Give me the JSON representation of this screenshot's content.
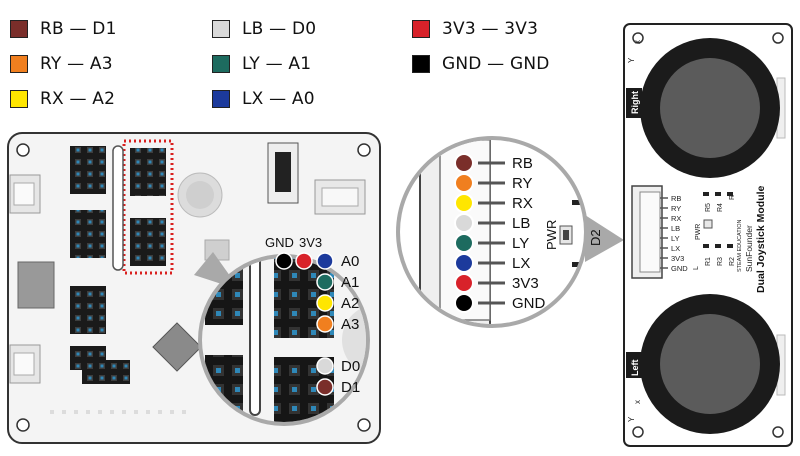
{
  "legend": [
    {
      "label": "RB — D1",
      "color": "#7a2e2a"
    },
    {
      "label": "RY — A3",
      "color": "#f07f1f"
    },
    {
      "label": "RX — A2",
      "color": "#ffe600"
    },
    {
      "label": "LB — D0",
      "color": "#d9d9d9"
    },
    {
      "label": "LY — A1",
      "color": "#1d6b5f"
    },
    {
      "label": "LX — A0",
      "color": "#1c3a9c"
    },
    {
      "label": "3V3 — 3V3",
      "color": "#d8222a"
    },
    {
      "label": "GND — GND",
      "color": "#000000"
    }
  ],
  "board_zoom": {
    "gnd_label": "GND",
    "v33_label": "3V3",
    "analog_pins": [
      "A0",
      "A1",
      "A2",
      "A3"
    ],
    "digital_pins": [
      "D0",
      "D1"
    ]
  },
  "connector_zoom": {
    "pins": [
      "RB",
      "RY",
      "RX",
      "LB",
      "LY",
      "LX",
      "3V3",
      "GND"
    ],
    "pwr_label": "PWR",
    "side_label": "D2"
  },
  "module": {
    "name": "Dual Joystick Module",
    "brand": "SunFounder",
    "sub_brand": "STEAM EDUCATION",
    "right_tab": "Right",
    "left_tab": "Left",
    "header_pins": [
      "RB",
      "RY",
      "RX",
      "LB",
      "LY",
      "LX",
      "3V3",
      "GND"
    ],
    "resistors": [
      "R5",
      "R4",
      "R",
      "R1",
      "R3",
      "R2",
      "L"
    ],
    "pwr_label": "PWR",
    "axis_x": "x",
    "axis_y": "Y"
  },
  "colors": {
    "board": "#f3f3f3",
    "header": "#1a1a1a",
    "pin": "#2f88b8",
    "highlight": "#d9201f"
  }
}
